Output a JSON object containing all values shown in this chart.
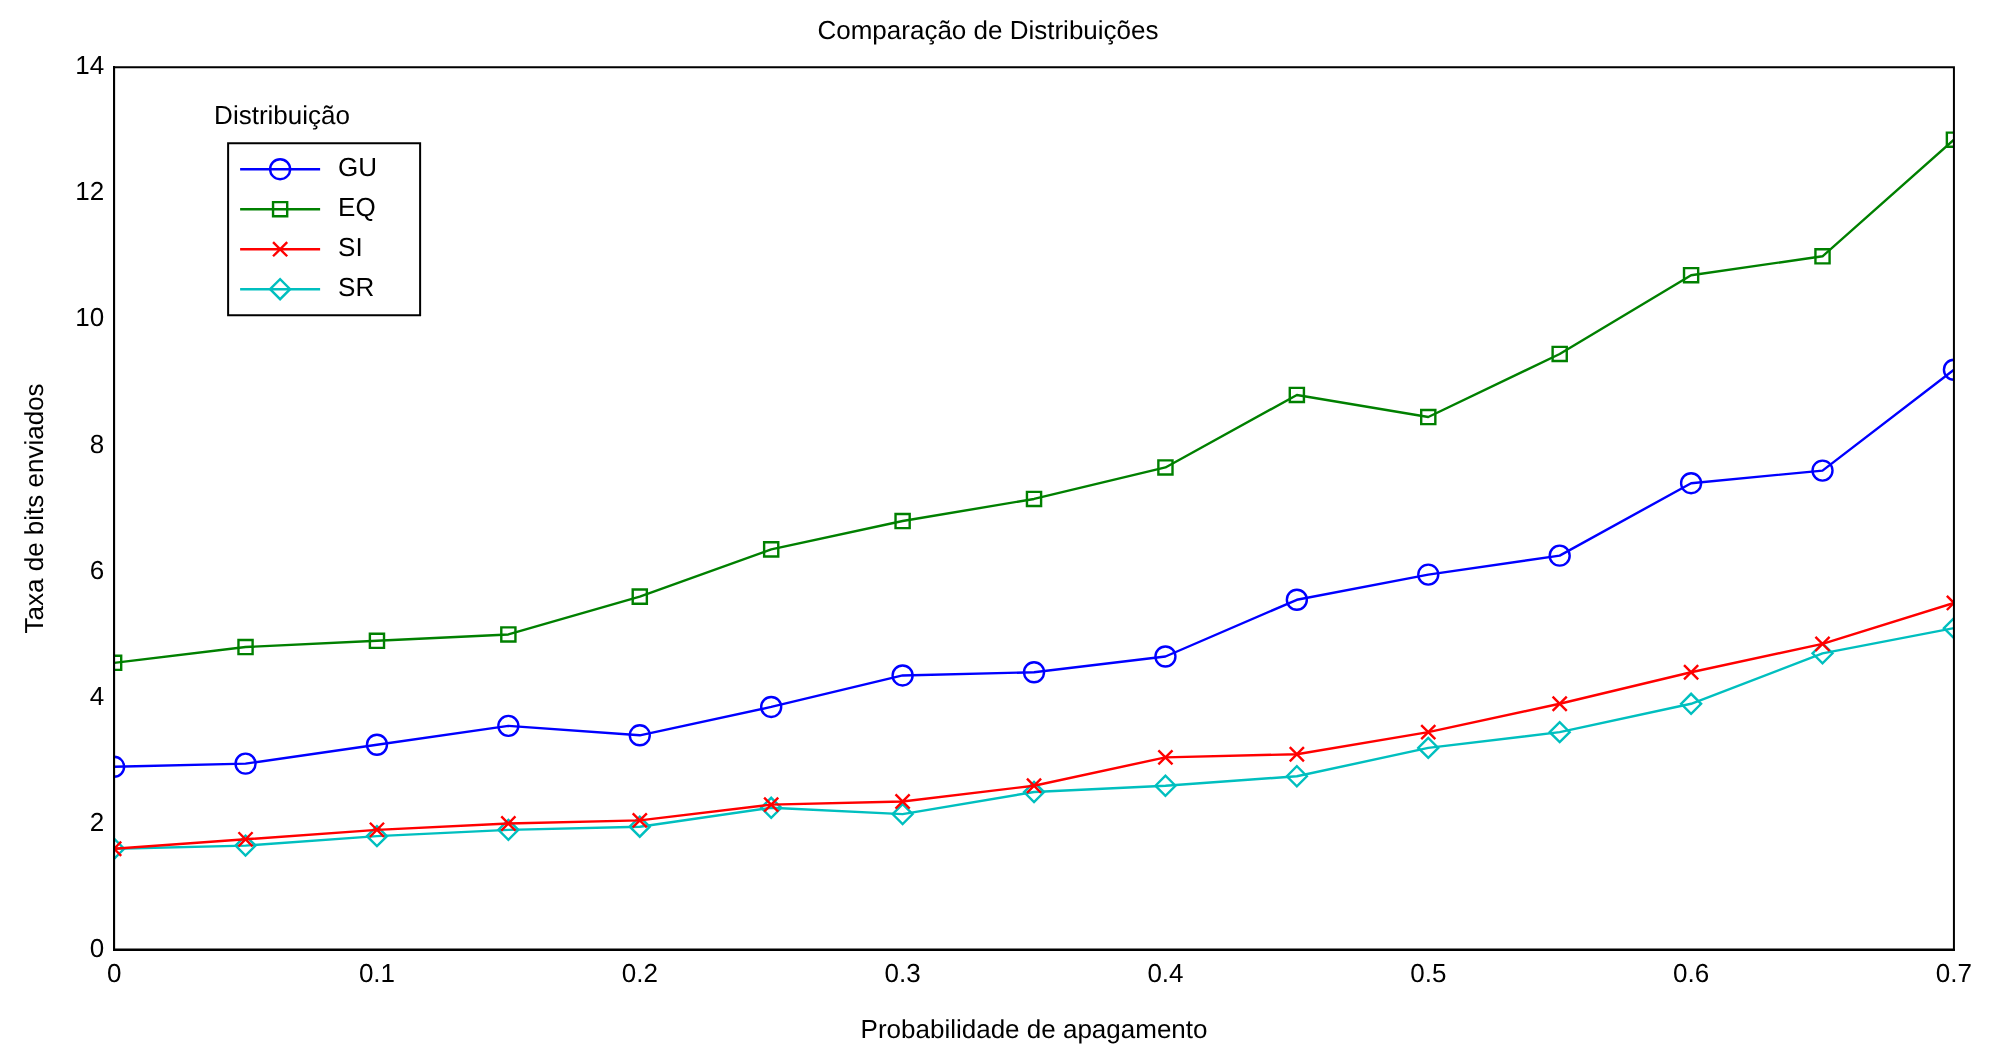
{
  "chart_data": {
    "type": "line",
    "title": "Comparação de Distribuições",
    "xlabel": "Probabilidade de apagamento",
    "ylabel": "Taxa de bits enviados",
    "legend_title": "Distribuição",
    "legend": "top left",
    "grid": false,
    "x": [
      0,
      0.05,
      0.1,
      0.15,
      0.2,
      0.25,
      0.3,
      0.35,
      0.4,
      0.45,
      0.5,
      0.55,
      0.6,
      0.65,
      0.7
    ],
    "xlim": [
      0,
      0.7
    ],
    "xticks": [
      0,
      0.1,
      0.2,
      0.3,
      0.4,
      0.5,
      0.6,
      0.7
    ],
    "ylim": [
      0,
      14
    ],
    "yticks": [
      0,
      2,
      4,
      6,
      8,
      10,
      12,
      14
    ],
    "series": [
      {
        "name": "GU",
        "color": "#0000ff",
        "marker": "circle",
        "values": [
          2.9,
          2.95,
          3.25,
          3.55,
          3.4,
          3.85,
          4.35,
          4.4,
          4.65,
          5.55,
          5.95,
          6.25,
          7.4,
          7.6,
          9.2
        ]
      },
      {
        "name": "EQ",
        "color": "#008000",
        "marker": "square",
        "values": [
          4.55,
          4.8,
          4.9,
          5.0,
          5.6,
          6.35,
          6.8,
          7.15,
          7.65,
          8.8,
          8.45,
          9.45,
          10.7,
          11.0,
          12.85
        ]
      },
      {
        "name": "SI",
        "color": "#ff0000",
        "marker": "cross",
        "values": [
          1.6,
          1.75,
          1.9,
          2.0,
          2.05,
          2.3,
          2.35,
          2.6,
          3.05,
          3.1,
          3.45,
          3.9,
          4.4,
          4.85,
          5.5
        ]
      },
      {
        "name": "SR",
        "color": "#00bfbf",
        "marker": "diamond",
        "values": [
          1.6,
          1.65,
          1.8,
          1.9,
          1.95,
          2.25,
          2.15,
          2.5,
          2.6,
          2.75,
          3.2,
          3.45,
          3.9,
          4.7,
          5.1
        ]
      }
    ]
  }
}
